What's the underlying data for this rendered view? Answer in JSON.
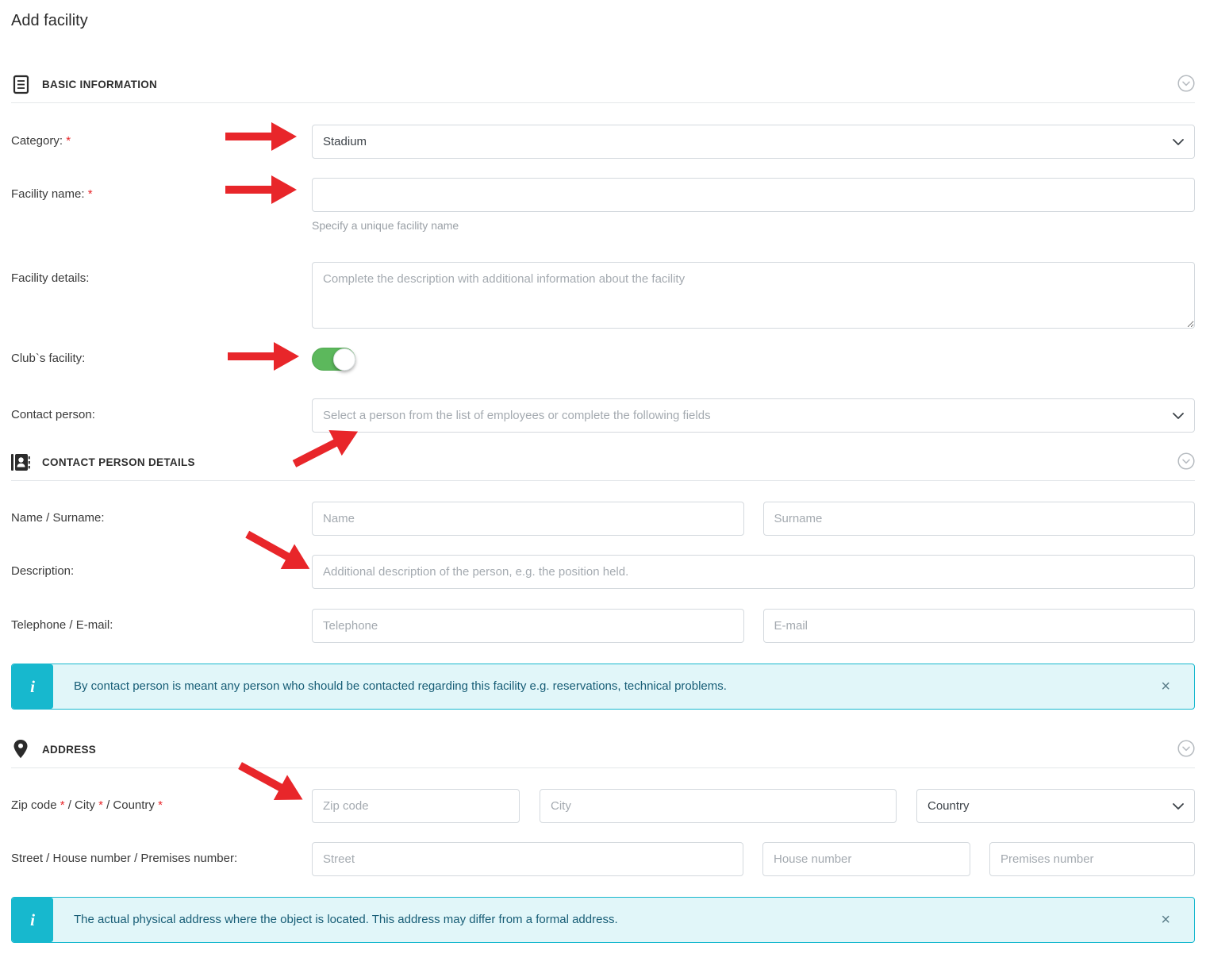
{
  "page": {
    "title": "Add facility"
  },
  "colors": {
    "arrow_red": "#e8262a",
    "toggle_green": "#5cb85c",
    "info_teal": "#17b8ce",
    "info_bg": "#e1f6f9",
    "info_text": "#175d76"
  },
  "sections": {
    "basic": {
      "title": "BASIC INFORMATION"
    },
    "contact": {
      "title": "CONTACT PERSON DETAILS"
    },
    "address": {
      "title": "ADDRESS"
    }
  },
  "fields": {
    "category": {
      "label": "Category: *",
      "value": "Stadium"
    },
    "facility_name": {
      "label": "Facility name: *",
      "value": "",
      "hint": "Specify a unique facility name"
    },
    "facility_details": {
      "label": "Facility details:",
      "placeholder": "Complete the description with additional information about the facility"
    },
    "clubs_facility": {
      "label": "Club`s facility:",
      "state": "on"
    },
    "contact_person": {
      "label": "Contact person:",
      "placeholder": "Select a person from the list of employees or complete the following fields"
    },
    "name_surname": {
      "label": "Name / Surname:",
      "name_placeholder": "Name",
      "surname_placeholder": "Surname"
    },
    "description": {
      "label": "Description:",
      "placeholder": "Additional description of the person, e.g. the position held."
    },
    "telephone_email": {
      "label": "Telephone / E-mail:",
      "telephone_placeholder": "Telephone",
      "email_placeholder": "E-mail"
    },
    "zip_city_country": {
      "label": "Zip code * / City * / Country *",
      "zip_placeholder": "Zip code",
      "city_placeholder": "City",
      "country_value": "Country"
    },
    "street_house_premises": {
      "label": "Street / House number / Premises number:",
      "street_placeholder": "Street",
      "house_placeholder": "House number",
      "premises_placeholder": "Premises number"
    }
  },
  "info_boxes": {
    "badge": "i",
    "close": "×",
    "contact": {
      "text": "By contact person is meant any person who should be contacted regarding this facility e.g. reservations, technical problems."
    },
    "address": {
      "text": "The actual physical address where the object is located. This address may differ from a formal address."
    }
  }
}
